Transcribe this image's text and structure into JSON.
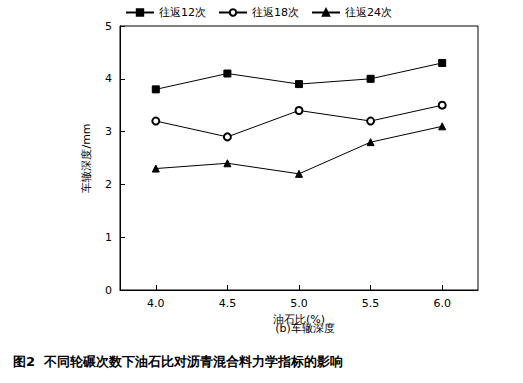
{
  "chart_data": {
    "type": "line",
    "subtitle": "(b)车辙深度",
    "title": "图2  不同轮碾次数下油石比对沥青混合料力学指标的影响",
    "x_label": "油石比(%)",
    "y_label": "车辙深度/mm",
    "categories": [
      "4.0",
      "4.5",
      "5.0",
      "5.5",
      "6.0"
    ],
    "series": [
      {
        "name": "往返12次",
        "color": "#000000",
        "marker": "square",
        "line_style": "solid",
        "values": [
          3.8,
          4.1,
          3.9,
          4.0,
          4.3
        ]
      },
      {
        "name": "往返18次",
        "color": "#000000",
        "marker": "open_circle",
        "line_style": "solid",
        "values": [
          3.2,
          2.9,
          3.4,
          3.2,
          3.5
        ]
      },
      {
        "name": "往返24次",
        "color": "#000000",
        "marker": "triangle",
        "line_style": "solid",
        "values": [
          2.3,
          2.4,
          2.2,
          2.8,
          3.1
        ]
      }
    ],
    "ylim": [
      0,
      5
    ],
    "yticks": [
      0,
      1,
      2,
      3,
      4,
      5
    ],
    "grid": false,
    "legend": "top"
  }
}
